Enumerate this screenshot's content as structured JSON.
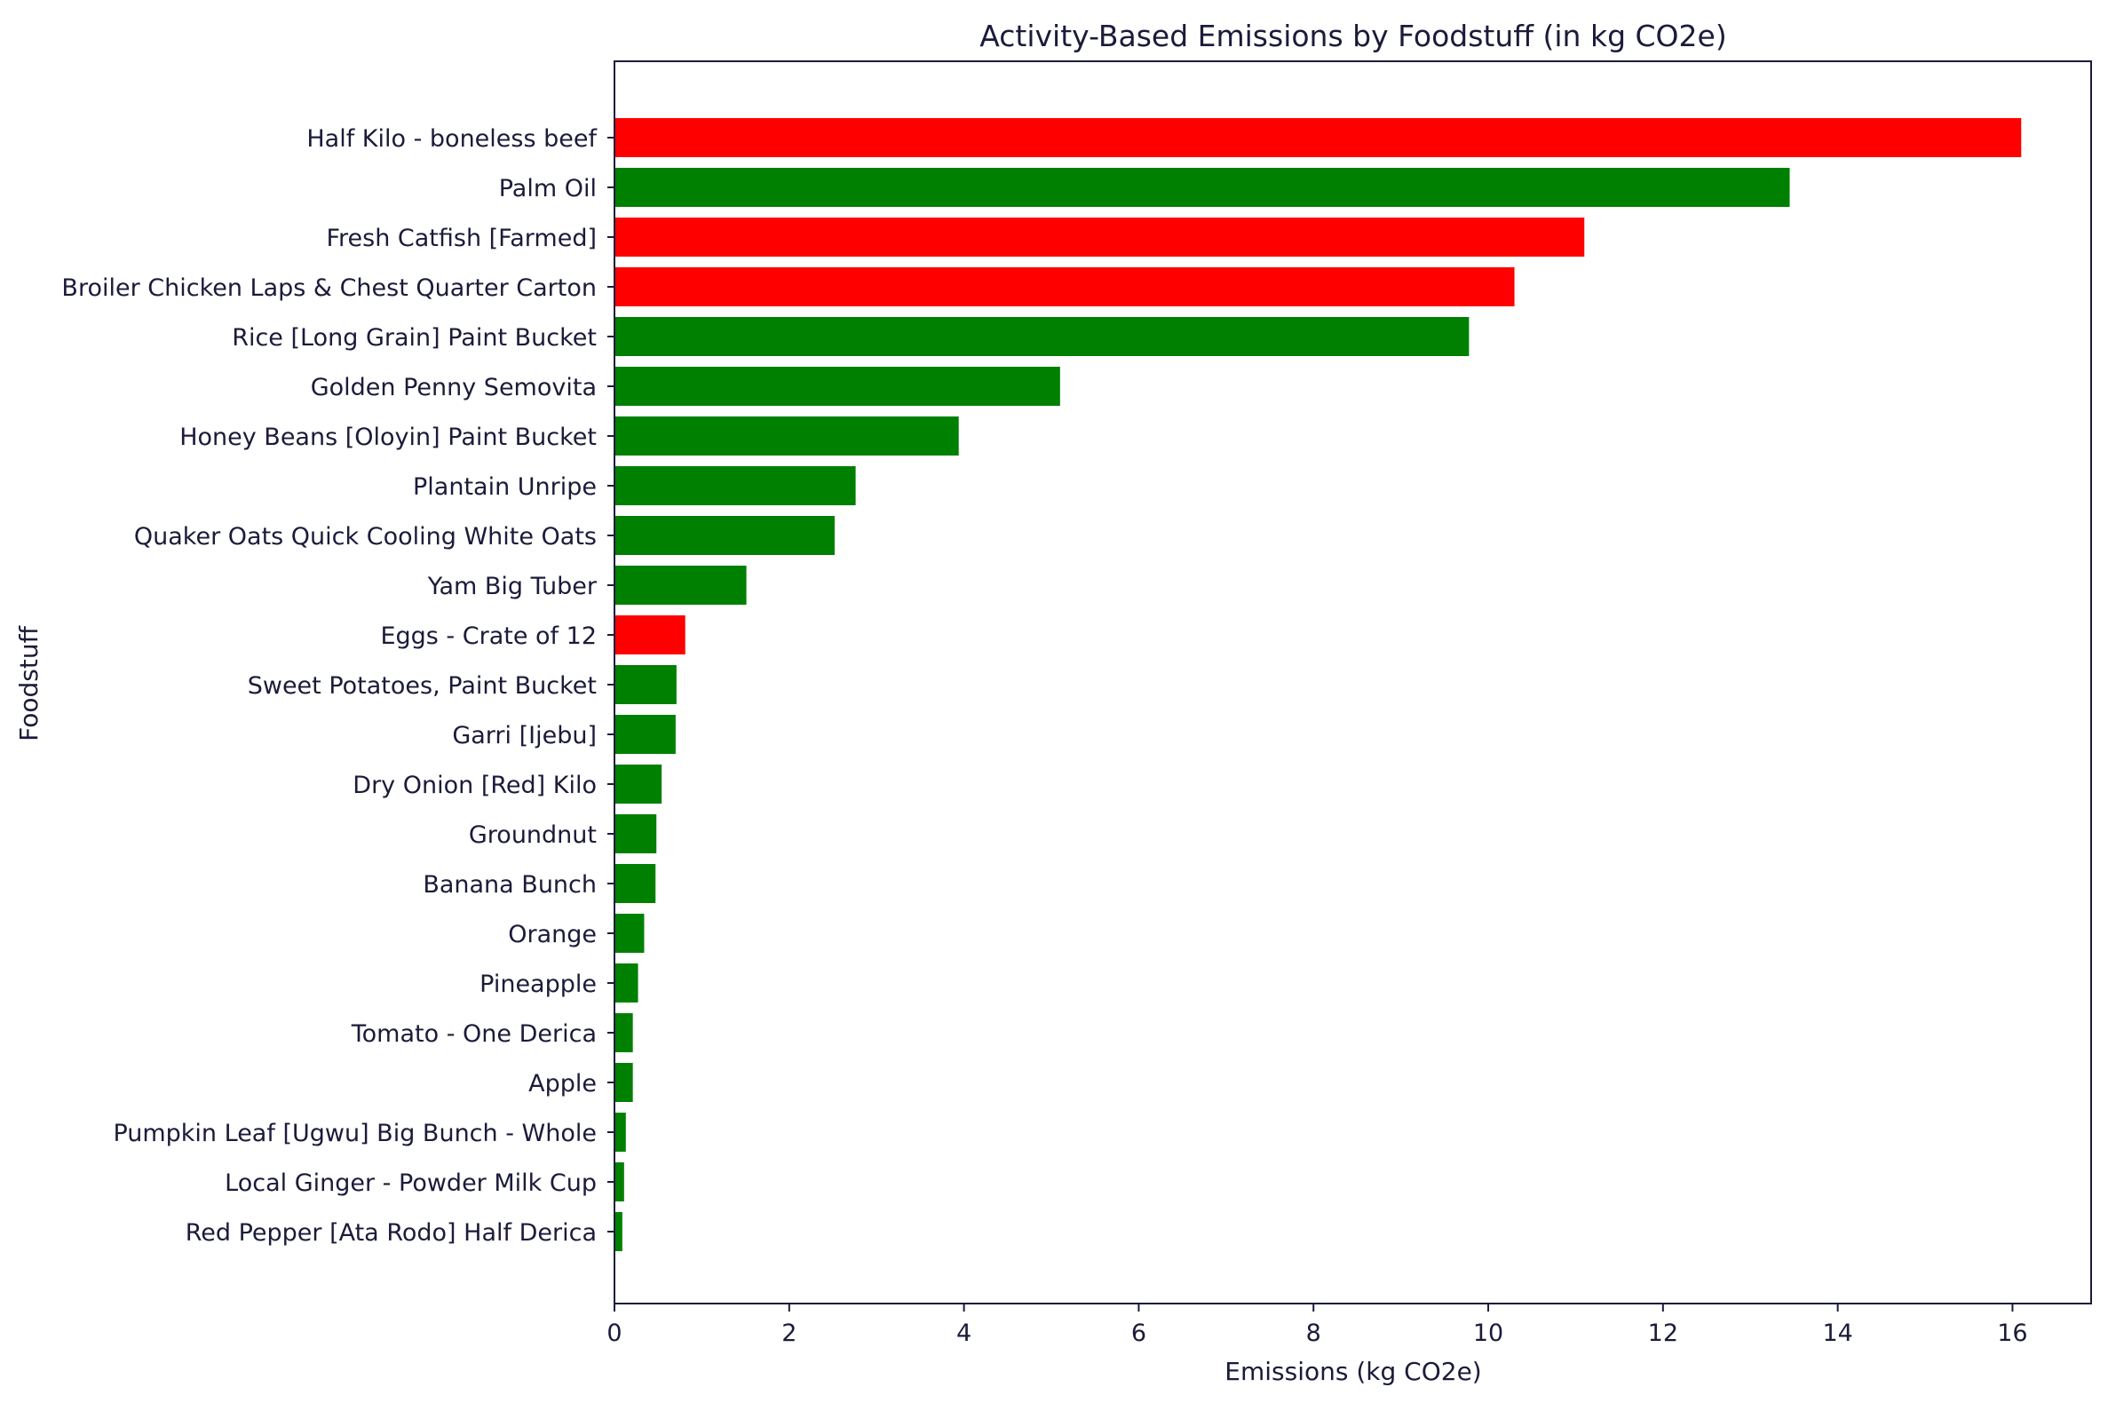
{
  "chart_data": {
    "type": "bar",
    "orientation": "horizontal",
    "title": "Activity-Based Emissions by Foodstuff (in kg CO2e)",
    "xlabel": "Emissions (kg CO2e)",
    "ylabel": "Foodstuff",
    "xlim": [
      0,
      16.9
    ],
    "xticks": [
      "0",
      "2",
      "4",
      "6",
      "8",
      "10",
      "12",
      "14",
      "16"
    ],
    "grid": false,
    "colors": {
      "animal": "#ff0000",
      "plant": "#008000"
    },
    "categories": [
      "Half Kilo - boneless beef",
      "Palm Oil",
      "Fresh Catfish [Farmed]",
      "Broiler Chicken Laps & Chest Quarter Carton",
      "Rice [Long Grain] Paint Bucket",
      "Golden Penny Semovita",
      "Honey Beans [Oloyin] Paint Bucket",
      "Plantain Unripe",
      "Quaker Oats Quick Cooling White Oats",
      "Yam Big Tuber",
      "Eggs - Crate of 12",
      "Sweet Potatoes, Paint Bucket",
      "Garri [Ijebu]",
      "Dry Onion [Red] Kilo",
      "Groundnut",
      "Banana Bunch",
      "Orange",
      "Pineapple",
      "Tomato - One Derica",
      "Apple",
      "Pumpkin Leaf [Ugwu] Big Bunch - Whole",
      "Local Ginger - Powder Milk Cup",
      "Red Pepper [Ata Rodo] Half Derica"
    ],
    "values": [
      16.1,
      13.45,
      11.1,
      10.3,
      9.78,
      5.1,
      3.94,
      2.76,
      2.52,
      1.51,
      0.81,
      0.71,
      0.7,
      0.54,
      0.48,
      0.47,
      0.34,
      0.27,
      0.21,
      0.21,
      0.13,
      0.11,
      0.09
    ],
    "bar_colors": [
      "#ff0000",
      "#008000",
      "#ff0000",
      "#ff0000",
      "#008000",
      "#008000",
      "#008000",
      "#008000",
      "#008000",
      "#008000",
      "#ff0000",
      "#008000",
      "#008000",
      "#008000",
      "#008000",
      "#008000",
      "#008000",
      "#008000",
      "#008000",
      "#008000",
      "#008000",
      "#008000",
      "#008000"
    ]
  }
}
